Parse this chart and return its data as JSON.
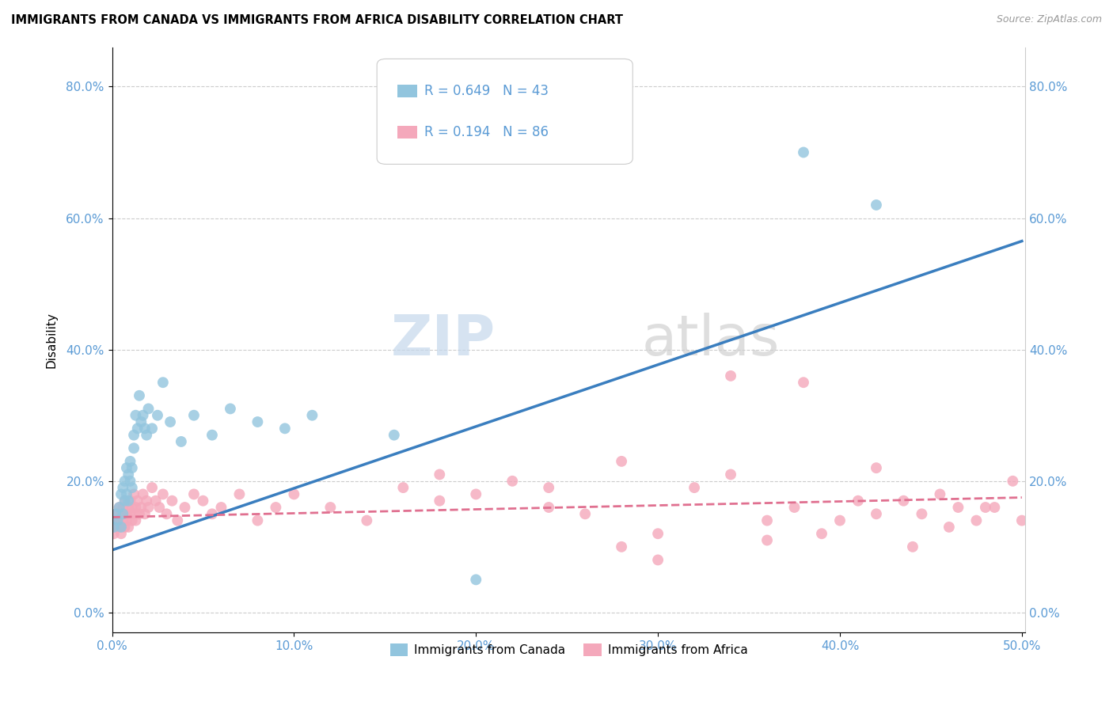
{
  "title": "IMMIGRANTS FROM CANADA VS IMMIGRANTS FROM AFRICA DISABILITY CORRELATION CHART",
  "source": "Source: ZipAtlas.com",
  "ylabel": "Disability",
  "xlabel_canada": "Immigrants from Canada",
  "xlabel_africa": "Immigrants from Africa",
  "R_canada": 0.649,
  "N_canada": 43,
  "R_africa": 0.194,
  "N_africa": 86,
  "xmin": 0.0,
  "xmax": 0.5,
  "ymin": -0.03,
  "ymax": 0.86,
  "yticks": [
    0.0,
    0.2,
    0.4,
    0.6,
    0.8
  ],
  "xticks": [
    0.0,
    0.1,
    0.2,
    0.3,
    0.4,
    0.5
  ],
  "color_canada": "#92c5de",
  "color_africa": "#f4a8bb",
  "trendline_canada_color": "#3a7ebf",
  "trendline_africa_color": "#e07090",
  "watermark_zip": "ZIP",
  "watermark_atlas": "atlas",
  "trendline_canada_x0": 0.0,
  "trendline_canada_y0": 0.095,
  "trendline_canada_x1": 0.5,
  "trendline_canada_y1": 0.565,
  "trendline_africa_x0": 0.0,
  "trendline_africa_y0": 0.145,
  "trendline_africa_x1": 0.5,
  "trendline_africa_y1": 0.175,
  "canada_x": [
    0.001,
    0.002,
    0.003,
    0.004,
    0.005,
    0.005,
    0.006,
    0.006,
    0.007,
    0.007,
    0.008,
    0.008,
    0.009,
    0.009,
    0.01,
    0.01,
    0.011,
    0.011,
    0.012,
    0.012,
    0.013,
    0.014,
    0.015,
    0.016,
    0.017,
    0.018,
    0.019,
    0.02,
    0.022,
    0.025,
    0.028,
    0.032,
    0.038,
    0.045,
    0.055,
    0.065,
    0.08,
    0.095,
    0.11,
    0.155,
    0.2,
    0.38,
    0.42
  ],
  "canada_y": [
    0.13,
    0.15,
    0.14,
    0.16,
    0.13,
    0.18,
    0.15,
    0.19,
    0.2,
    0.17,
    0.22,
    0.18,
    0.17,
    0.21,
    0.23,
    0.2,
    0.22,
    0.19,
    0.25,
    0.27,
    0.3,
    0.28,
    0.33,
    0.29,
    0.3,
    0.28,
    0.27,
    0.31,
    0.28,
    0.3,
    0.35,
    0.29,
    0.26,
    0.3,
    0.27,
    0.31,
    0.29,
    0.28,
    0.3,
    0.27,
    0.05,
    0.7,
    0.62
  ],
  "africa_x": [
    0.001,
    0.002,
    0.002,
    0.003,
    0.003,
    0.004,
    0.004,
    0.005,
    0.005,
    0.006,
    0.006,
    0.007,
    0.007,
    0.008,
    0.008,
    0.009,
    0.009,
    0.01,
    0.01,
    0.011,
    0.011,
    0.012,
    0.012,
    0.013,
    0.013,
    0.014,
    0.015,
    0.016,
    0.017,
    0.018,
    0.019,
    0.02,
    0.022,
    0.024,
    0.026,
    0.028,
    0.03,
    0.033,
    0.036,
    0.04,
    0.045,
    0.05,
    0.055,
    0.06,
    0.07,
    0.08,
    0.09,
    0.1,
    0.12,
    0.14,
    0.16,
    0.18,
    0.2,
    0.22,
    0.24,
    0.26,
    0.28,
    0.3,
    0.32,
    0.34,
    0.36,
    0.375,
    0.39,
    0.4,
    0.41,
    0.42,
    0.435,
    0.445,
    0.455,
    0.465,
    0.475,
    0.485,
    0.495,
    0.505,
    0.34,
    0.28,
    0.38,
    0.42,
    0.18,
    0.24,
    0.3,
    0.36,
    0.44,
    0.46,
    0.48,
    0.5
  ],
  "africa_y": [
    0.12,
    0.14,
    0.13,
    0.14,
    0.15,
    0.13,
    0.16,
    0.12,
    0.15,
    0.14,
    0.16,
    0.13,
    0.17,
    0.15,
    0.14,
    0.16,
    0.13,
    0.15,
    0.17,
    0.14,
    0.16,
    0.15,
    0.18,
    0.16,
    0.14,
    0.17,
    0.15,
    0.16,
    0.18,
    0.15,
    0.17,
    0.16,
    0.19,
    0.17,
    0.16,
    0.18,
    0.15,
    0.17,
    0.14,
    0.16,
    0.18,
    0.17,
    0.15,
    0.16,
    0.18,
    0.14,
    0.16,
    0.18,
    0.16,
    0.14,
    0.19,
    0.17,
    0.18,
    0.2,
    0.16,
    0.15,
    0.1,
    0.12,
    0.19,
    0.21,
    0.14,
    0.16,
    0.12,
    0.14,
    0.17,
    0.15,
    0.17,
    0.15,
    0.18,
    0.16,
    0.14,
    0.16,
    0.2,
    0.18,
    0.36,
    0.23,
    0.35,
    0.22,
    0.21,
    0.19,
    0.08,
    0.11,
    0.1,
    0.13,
    0.16,
    0.14
  ]
}
